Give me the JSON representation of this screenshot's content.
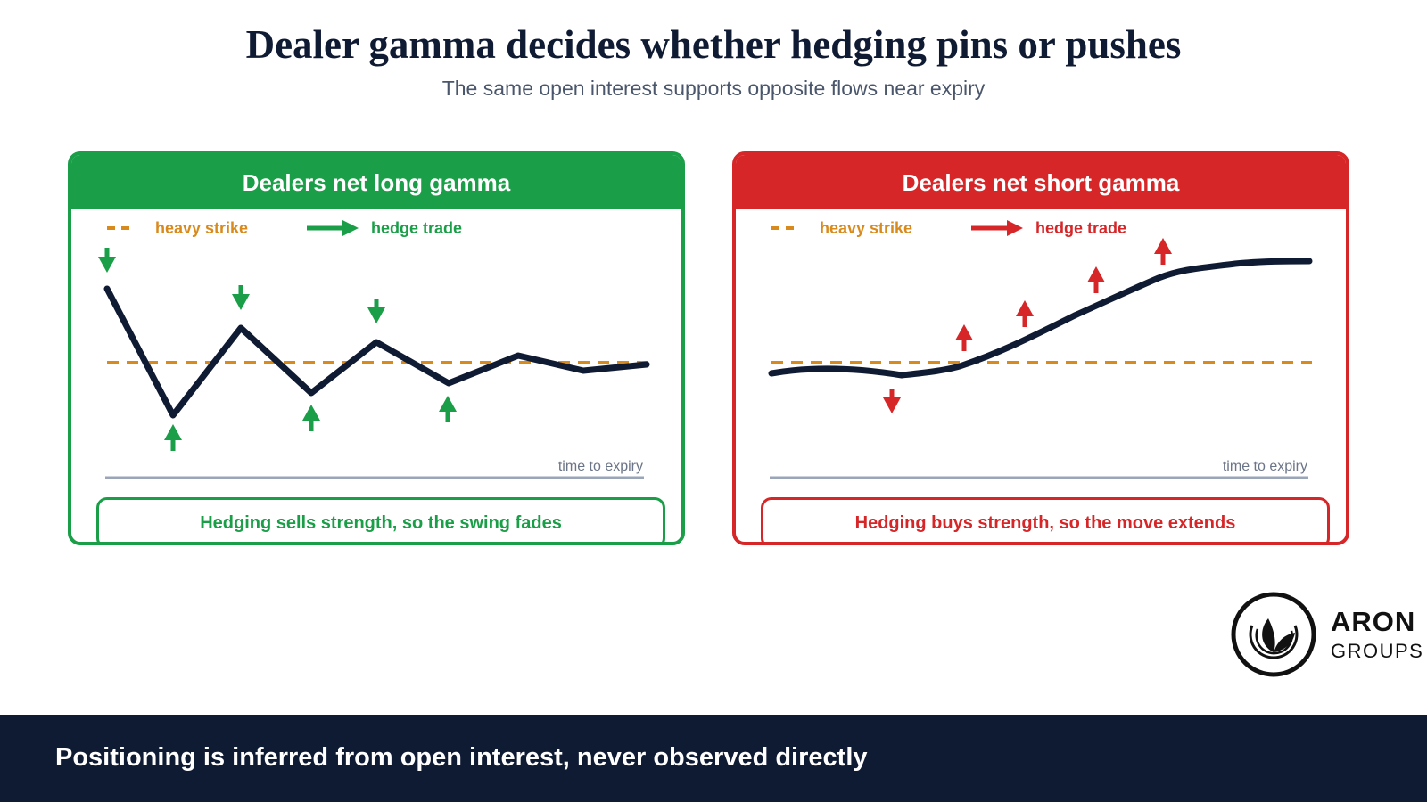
{
  "title": "Dealer gamma decides whether hedging pins or pushes",
  "subtitle": "The same open interest supports opposite flows near expiry",
  "colors": {
    "green": "#1a9e47",
    "red": "#d62628",
    "navy": "#0f1a33",
    "strike": "#d98a1c",
    "axis": "#9aa5b8"
  },
  "panels": [
    {
      "id": "long",
      "header": "Dealers net long gamma",
      "legend_strike": "heavy strike",
      "legend_hedge": "hedge trade",
      "axis_label": "time to expiry",
      "caption": "Hedging sells strength, so the swing fades"
    },
    {
      "id": "short",
      "header": "Dealers net short gamma",
      "legend_strike": "heavy strike",
      "legend_hedge": "hedge trade",
      "axis_label": "time to expiry",
      "caption": "Hedging buys strength, so the move extends"
    }
  ],
  "logo": {
    "name": "ARON",
    "sub": "GROUPS"
  },
  "footer": "Positioning is inferred from open interest, never observed directly"
}
